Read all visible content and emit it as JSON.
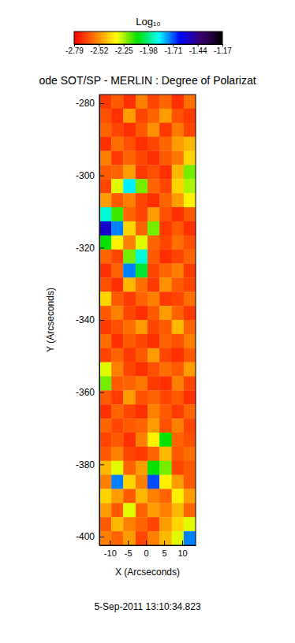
{
  "chart_data": {
    "type": "heatmap",
    "title": "ode SOT/SP - MERLIN : Degree of Polarizat",
    "x_label": "X (Arcseconds)",
    "y_label": "Y (Arcseconds)",
    "annotation": "5-Sep-2011 13:10:34.823",
    "xlim": [
      -12.9,
      13.7
    ],
    "ylim": [
      -402.4,
      -277.6
    ],
    "xticks": [
      -10,
      -5,
      0,
      5,
      10
    ],
    "yticks": [
      -400,
      -380,
      -360,
      -340,
      -320,
      -300,
      -280
    ],
    "x_bins": [
      -12.9,
      -9.6,
      -6.3,
      -2.9,
      0.4,
      3.7,
      7.1,
      10.4,
      13.7
    ],
    "y_bins": [
      -277.6,
      -281.5,
      -285.4,
      -289.3,
      -293.2,
      -297.1,
      -301.0,
      -304.9,
      -308.8,
      -312.7,
      -316.6,
      -320.5,
      -324.4,
      -328.3,
      -332.2,
      -336.1,
      -340.0,
      -343.9,
      -347.8,
      -351.7,
      -355.6,
      -359.5,
      -363.4,
      -367.3,
      -371.2,
      -375.1,
      -379.0,
      -382.9,
      -386.8,
      -390.7,
      -394.6,
      -398.5,
      -402.4
    ],
    "z": [
      [
        -2.68,
        -2.62,
        -2.7,
        -2.55,
        -2.66,
        -2.6,
        -2.7,
        -2.58
      ],
      [
        -2.64,
        -2.7,
        -2.5,
        -2.66,
        -2.6,
        -2.5,
        -2.64,
        -2.68
      ],
      [
        -2.6,
        -2.66,
        -2.7,
        -2.62,
        -2.52,
        -2.68,
        -2.56,
        -2.66
      ],
      [
        -2.7,
        -2.58,
        -2.64,
        -2.7,
        -2.66,
        -2.6,
        -2.5,
        -2.45
      ],
      [
        -2.55,
        -2.68,
        -2.6,
        -2.66,
        -2.7,
        -2.62,
        -2.56,
        -2.4
      ],
      [
        -2.62,
        -2.6,
        -2.5,
        -2.68,
        -2.64,
        -2.7,
        -2.45,
        -2.2
      ],
      [
        -2.66,
        -2.3,
        -1.85,
        -2.2,
        -2.6,
        -2.66,
        -2.4,
        -2.25
      ],
      [
        -2.5,
        -2.62,
        -2.55,
        -2.66,
        -2.7,
        -2.6,
        -2.5,
        -2.35
      ],
      [
        -1.9,
        -2.15,
        -2.6,
        -2.66,
        -2.5,
        -2.64,
        -2.7,
        -2.62
      ],
      [
        -1.55,
        -1.75,
        -2.4,
        -2.6,
        -2.2,
        -2.68,
        -2.62,
        -2.7
      ],
      [
        -2.1,
        -2.35,
        -2.55,
        -2.3,
        -2.6,
        -2.66,
        -2.58,
        -2.64
      ],
      [
        -2.6,
        -2.66,
        -2.2,
        -1.9,
        -2.62,
        -2.7,
        -2.66,
        -2.6
      ],
      [
        -2.7,
        -2.6,
        -1.75,
        -2.05,
        -2.66,
        -2.6,
        -2.55,
        -2.68
      ],
      [
        -2.64,
        -2.7,
        -2.45,
        -2.58,
        -2.68,
        -2.52,
        -2.62,
        -2.66
      ],
      [
        -2.4,
        -2.62,
        -2.68,
        -2.6,
        -2.55,
        -2.68,
        -2.66,
        -2.58
      ],
      [
        -2.62,
        -2.55,
        -2.66,
        -2.7,
        -2.62,
        -2.5,
        -2.6,
        -2.68
      ],
      [
        -2.68,
        -2.64,
        -2.58,
        -2.5,
        -2.66,
        -2.62,
        -2.45,
        -2.6
      ],
      [
        -2.58,
        -2.7,
        -2.62,
        -2.66,
        -2.7,
        -2.6,
        -2.64,
        -2.55
      ],
      [
        -2.66,
        -2.6,
        -2.68,
        -2.62,
        -2.5,
        -2.66,
        -2.7,
        -2.62
      ],
      [
        -2.3,
        -2.55,
        -2.66,
        -2.7,
        -2.64,
        -2.58,
        -2.62,
        -2.5
      ],
      [
        -2.2,
        -2.62,
        -2.6,
        -2.56,
        -2.68,
        -2.7,
        -2.55,
        -2.66
      ],
      [
        -2.62,
        -2.68,
        -2.5,
        -2.64,
        -2.6,
        -2.66,
        -2.62,
        -2.7
      ],
      [
        -2.7,
        -2.6,
        -2.66,
        -2.7,
        -2.55,
        -2.62,
        -2.68,
        -2.6
      ],
      [
        -2.6,
        -2.66,
        -2.62,
        -2.6,
        -2.5,
        -2.64,
        -2.55,
        -2.66
      ],
      [
        -2.66,
        -2.62,
        -2.7,
        -2.55,
        -2.35,
        -2.1,
        -2.6,
        -2.64
      ],
      [
        -2.62,
        -2.55,
        -2.66,
        -2.68,
        -2.6,
        -2.45,
        -2.62,
        -2.58
      ],
      [
        -2.45,
        -2.3,
        -2.6,
        -2.5,
        -2.1,
        -2.2,
        -2.66,
        -2.62
      ],
      [
        -2.55,
        -1.75,
        -2.4,
        -2.55,
        -1.7,
        -2.35,
        -2.5,
        -2.62
      ],
      [
        -2.4,
        -2.5,
        -2.62,
        -2.45,
        -2.55,
        -2.6,
        -2.35,
        -2.5
      ],
      [
        -2.5,
        -2.62,
        -2.3,
        -2.6,
        -2.5,
        -2.55,
        -2.45,
        -2.6
      ],
      [
        -2.62,
        -2.45,
        -2.55,
        -2.6,
        -2.66,
        -2.5,
        -2.4,
        -2.3
      ],
      [
        -2.55,
        -2.6,
        -2.5,
        -2.66,
        -2.55,
        -2.45,
        -2.3,
        -1.75
      ]
    ],
    "colorbar": {
      "label": "Log₁₀",
      "range": [
        -2.79,
        -1.17
      ],
      "ticks": [
        -2.79,
        -2.52,
        -2.25,
        -1.98,
        -1.71,
        -1.44,
        -1.17
      ]
    }
  }
}
